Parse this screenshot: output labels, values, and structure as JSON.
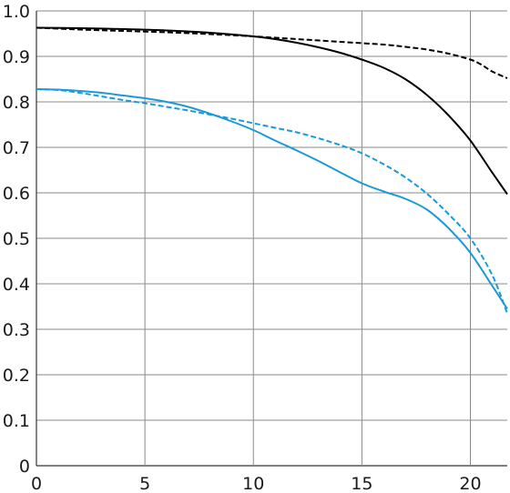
{
  "chart_data": {
    "type": "line",
    "title": "",
    "xlabel": "",
    "ylabel": "",
    "xlim": [
      0,
      21.7
    ],
    "ylim": [
      0,
      1.0
    ],
    "x_ticks": [
      0,
      5,
      10,
      15,
      20
    ],
    "x_tick_labels": [
      "0",
      "5",
      "10",
      "15",
      "20"
    ],
    "y_ticks": [
      0,
      0.1,
      0.2,
      0.3,
      0.4,
      0.5,
      0.6,
      0.7,
      0.8,
      0.9,
      1.0
    ],
    "y_tick_labels": [
      "0",
      "0.1",
      "0.2",
      "0.3",
      "0.4",
      "0.5",
      "0.6",
      "0.7",
      "0.8",
      "0.9",
      "1.0"
    ],
    "grid": true,
    "legend": "none",
    "series": [
      {
        "color": "#000000",
        "dash": "solid",
        "x": [
          0,
          2,
          4,
          6,
          8,
          10,
          11,
          12,
          13,
          14,
          15,
          16,
          17,
          18,
          19,
          20,
          21,
          21.7
        ],
        "y": [
          0.963,
          0.962,
          0.96,
          0.957,
          0.952,
          0.944,
          0.938,
          0.93,
          0.92,
          0.908,
          0.893,
          0.875,
          0.85,
          0.815,
          0.77,
          0.715,
          0.645,
          0.597
        ]
      },
      {
        "color": "#000000",
        "dash": "dashed",
        "x": [
          0,
          2,
          4,
          6,
          8,
          10,
          12,
          14,
          16,
          17,
          18,
          19,
          20,
          20.5,
          21,
          21.7
        ],
        "y": [
          0.963,
          0.959,
          0.956,
          0.953,
          0.949,
          0.944,
          0.938,
          0.932,
          0.926,
          0.921,
          0.915,
          0.906,
          0.893,
          0.882,
          0.867,
          0.852
        ]
      },
      {
        "color": "#1a9ad9",
        "dash": "solid",
        "x": [
          0,
          1,
          2,
          3,
          4,
          5,
          6,
          7,
          8,
          9,
          10,
          11,
          12,
          13,
          14,
          15,
          16,
          17,
          18,
          19,
          20,
          21,
          21.7
        ],
        "y": [
          0.828,
          0.827,
          0.824,
          0.82,
          0.814,
          0.808,
          0.8,
          0.789,
          0.774,
          0.757,
          0.738,
          0.715,
          0.693,
          0.67,
          0.645,
          0.621,
          0.603,
          0.587,
          0.563,
          0.522,
          0.468,
          0.396,
          0.345
        ]
      },
      {
        "color": "#1a9ad9",
        "dash": "dashed",
        "x": [
          0,
          1,
          2,
          3,
          4,
          5,
          6,
          7,
          8,
          9,
          10,
          11,
          12,
          13,
          14,
          15,
          16,
          17,
          18,
          19,
          20,
          21,
          21.7
        ],
        "y": [
          0.828,
          0.826,
          0.82,
          0.812,
          0.804,
          0.797,
          0.789,
          0.781,
          0.772,
          0.763,
          0.753,
          0.743,
          0.733,
          0.72,
          0.705,
          0.687,
          0.663,
          0.634,
          0.598,
          0.553,
          0.5,
          0.42,
          0.335
        ]
      }
    ]
  }
}
